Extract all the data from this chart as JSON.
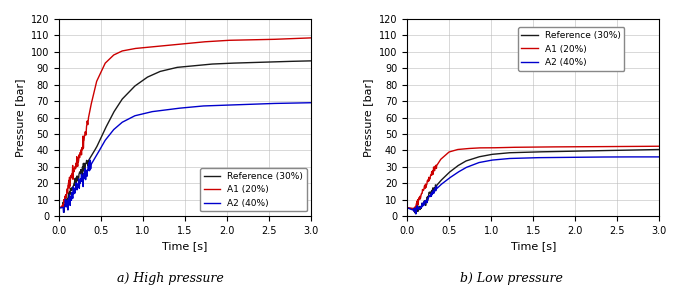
{
  "title_a": "a) High pressure",
  "title_b": "b) Low pressure",
  "xlabel": "Time [s]",
  "ylabel": "Pressure [bar]",
  "xlim": [
    0,
    3.0
  ],
  "ylim": [
    0,
    120
  ],
  "yticks": [
    0,
    10,
    20,
    30,
    40,
    50,
    60,
    70,
    80,
    90,
    100,
    110,
    120
  ],
  "xticks": [
    0.0,
    0.5,
    1.0,
    1.5,
    2.0,
    2.5,
    3.0
  ],
  "legend_labels": [
    "Reference (30%)",
    "A1 (20%)",
    "A2 (40%)"
  ],
  "colors": {
    "reference": "#1a1a1a",
    "a1": "#cc0000",
    "a2": "#0000cc"
  },
  "high_pressure": {
    "reference": {
      "t": [
        0.0,
        0.03,
        0.06,
        0.09,
        0.12,
        0.15,
        0.18,
        0.22,
        0.27,
        0.32,
        0.38,
        0.45,
        0.55,
        0.65,
        0.75,
        0.9,
        1.05,
        1.2,
        1.4,
        1.6,
        1.8,
        2.0,
        2.3,
        2.6,
        3.0
      ],
      "p": [
        5.0,
        5.2,
        6.0,
        8.5,
        12.0,
        16.0,
        19.5,
        23.0,
        27.0,
        31.0,
        36.0,
        42.0,
        53.0,
        63.0,
        71.0,
        79.0,
        84.5,
        88.0,
        90.5,
        91.5,
        92.5,
        93.0,
        93.5,
        94.0,
        94.5
      ]
    },
    "a1": {
      "t": [
        0.0,
        0.03,
        0.06,
        0.09,
        0.12,
        0.15,
        0.18,
        0.22,
        0.27,
        0.32,
        0.38,
        0.45,
        0.55,
        0.65,
        0.75,
        0.9,
        1.1,
        1.4,
        1.7,
        2.0,
        2.5,
        3.0
      ],
      "p": [
        5.0,
        5.5,
        8.0,
        13.0,
        19.0,
        24.0,
        28.5,
        33.0,
        40.0,
        51.0,
        67.0,
        82.0,
        93.0,
        98.0,
        100.5,
        102.0,
        103.0,
        104.5,
        106.0,
        107.0,
        107.5,
        108.5
      ]
    },
    "a2": {
      "t": [
        0.0,
        0.03,
        0.06,
        0.09,
        0.12,
        0.15,
        0.18,
        0.22,
        0.27,
        0.32,
        0.38,
        0.45,
        0.55,
        0.65,
        0.75,
        0.9,
        1.1,
        1.4,
        1.7,
        2.0,
        2.5,
        3.0
      ],
      "p": [
        5.0,
        5.0,
        5.5,
        6.5,
        9.0,
        12.0,
        15.0,
        18.5,
        22.0,
        26.0,
        31.0,
        37.0,
        46.0,
        52.5,
        57.0,
        61.0,
        63.5,
        65.5,
        67.0,
        67.5,
        68.5,
        69.0
      ]
    }
  },
  "low_pressure": {
    "reference": {
      "t": [
        0.0,
        0.05,
        0.08,
        0.1,
        0.13,
        0.16,
        0.2,
        0.25,
        0.3,
        0.35,
        0.4,
        0.5,
        0.6,
        0.7,
        0.85,
        1.0,
        1.2,
        1.5,
        2.0,
        2.5,
        3.0
      ],
      "p": [
        5.0,
        4.5,
        3.8,
        3.5,
        4.0,
        5.5,
        8.0,
        11.5,
        15.0,
        18.5,
        21.5,
        26.5,
        30.5,
        33.5,
        36.0,
        37.5,
        38.5,
        39.0,
        39.5,
        40.0,
        40.5
      ]
    },
    "a1": {
      "t": [
        0.0,
        0.05,
        0.08,
        0.1,
        0.13,
        0.16,
        0.2,
        0.25,
        0.3,
        0.35,
        0.4,
        0.5,
        0.6,
        0.7,
        0.85,
        1.0,
        1.2,
        1.5,
        2.0,
        2.5,
        3.0
      ],
      "p": [
        5.0,
        4.8,
        4.5,
        5.5,
        8.5,
        12.0,
        16.5,
        21.5,
        26.0,
        30.5,
        34.5,
        39.0,
        40.5,
        41.0,
        41.5,
        41.5,
        41.8,
        42.0,
        42.2,
        42.3,
        42.5
      ]
    },
    "a2": {
      "t": [
        0.0,
        0.05,
        0.08,
        0.1,
        0.13,
        0.16,
        0.2,
        0.25,
        0.3,
        0.35,
        0.4,
        0.5,
        0.6,
        0.7,
        0.85,
        1.0,
        1.2,
        1.5,
        2.0,
        2.5,
        3.0
      ],
      "p": [
        5.0,
        4.0,
        3.5,
        3.5,
        4.0,
        5.5,
        7.5,
        10.5,
        13.5,
        16.5,
        19.0,
        23.0,
        26.5,
        29.5,
        32.5,
        34.0,
        35.0,
        35.5,
        35.8,
        36.0,
        36.0
      ]
    }
  },
  "noise_segments": {
    "hp_ref": {
      "t_start": 0.05,
      "t_end": 0.35,
      "seed": 11,
      "scale": 1.5
    },
    "hp_a1": {
      "t_start": 0.05,
      "t_end": 0.35,
      "seed": 22,
      "scale": 1.8
    },
    "hp_a2": {
      "t_start": 0.05,
      "t_end": 0.38,
      "seed": 33,
      "scale": 2.0
    },
    "lp_ref": {
      "t_start": 0.08,
      "t_end": 0.35,
      "seed": 44,
      "scale": 1.0
    },
    "lp_a1": {
      "t_start": 0.08,
      "t_end": 0.35,
      "seed": 55,
      "scale": 1.0
    },
    "lp_a2": {
      "t_start": 0.08,
      "t_end": 0.35,
      "seed": 66,
      "scale": 0.8
    }
  },
  "figsize": [
    6.82,
    2.88
  ],
  "dpi": 100
}
